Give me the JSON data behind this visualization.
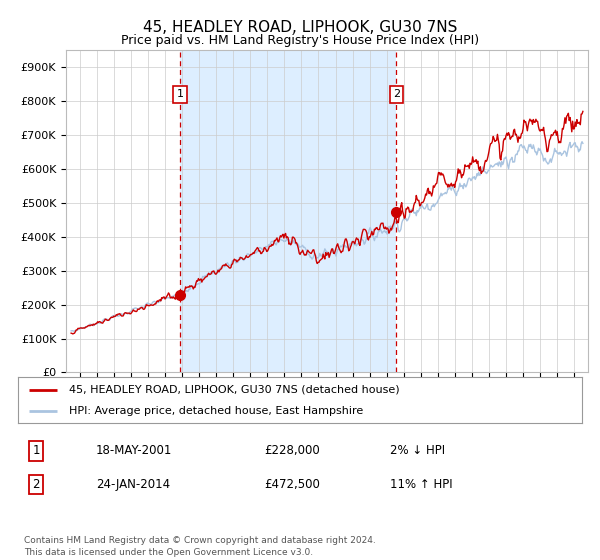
{
  "title": "45, HEADLEY ROAD, LIPHOOK, GU30 7NS",
  "subtitle": "Price paid vs. HM Land Registry's House Price Index (HPI)",
  "ylabel_ticks": [
    "£0",
    "£100K",
    "£200K",
    "£300K",
    "£400K",
    "£500K",
    "£600K",
    "£700K",
    "£800K",
    "£900K"
  ],
  "ytick_values": [
    0,
    100000,
    200000,
    300000,
    400000,
    500000,
    600000,
    700000,
    800000,
    900000
  ],
  "ylim": [
    0,
    950000
  ],
  "hpi_color": "#aac4e0",
  "price_color": "#cc0000",
  "vline_color": "#cc0000",
  "fill_color": "#ddeeff",
  "marker1_year": 2001.38,
  "marker1_price": 228000,
  "marker2_year": 2014.07,
  "marker2_price": 472500,
  "legend_line1": "45, HEADLEY ROAD, LIPHOOK, GU30 7NS (detached house)",
  "legend_line2": "HPI: Average price, detached house, East Hampshire",
  "annotation1_num": "1",
  "annotation1_date": "18-MAY-2001",
  "annotation1_price": "£228,000",
  "annotation1_pct": "2% ↓ HPI",
  "annotation2_num": "2",
  "annotation2_date": "24-JAN-2014",
  "annotation2_price": "£472,500",
  "annotation2_pct": "11% ↑ HPI",
  "footer": "Contains HM Land Registry data © Crown copyright and database right 2024.\nThis data is licensed under the Open Government Licence v3.0.",
  "background_color": "#ffffff",
  "grid_color": "#cccccc"
}
